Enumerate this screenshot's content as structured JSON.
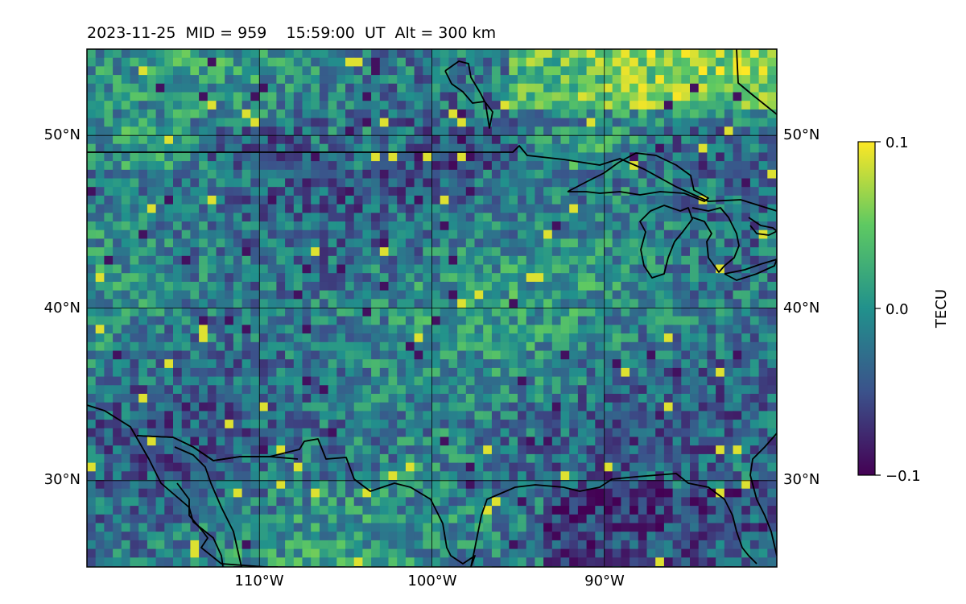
{
  "title": "2023-11-25  MID = 959    15:59:00  UT  Alt = 300 km",
  "map": {
    "lon_range": [
      -120,
      -80
    ],
    "lat_range": [
      25,
      55
    ],
    "lon_ticks": [
      {
        "value": -110,
        "label": "110°W"
      },
      {
        "value": -100,
        "label": "100°W"
      },
      {
        "value": -90,
        "label": "90°W"
      }
    ],
    "lat_ticks": [
      {
        "value": 30,
        "label": "30°N"
      },
      {
        "value": 40,
        "label": "40°N"
      },
      {
        "value": 50,
        "label": "50°N"
      }
    ],
    "gridlines": true,
    "coastlines": true
  },
  "colorbar": {
    "label": "TECU",
    "min": -0.1,
    "max": 0.1,
    "ticks": [
      {
        "value": 0.1,
        "label": "0.1"
      },
      {
        "value": 0.0,
        "label": "0.0"
      },
      {
        "value": -0.1,
        "label": "−0.1"
      }
    ],
    "colormap": [
      "#440154",
      "#3b528b",
      "#21918c",
      "#5ec962",
      "#fde725"
    ]
  },
  "chart_data": {
    "type": "heatmap",
    "quantity": "TECU",
    "value_range": [
      -0.1,
      0.1
    ],
    "colormap": "viridis"
  }
}
